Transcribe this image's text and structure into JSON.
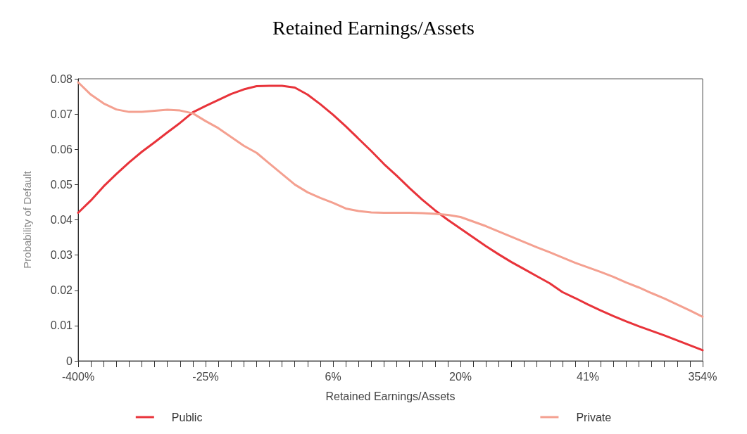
{
  "chart_data": {
    "type": "line",
    "title": "Retained Earnings/Assets",
    "xlabel": "Retained Earnings/Assets",
    "ylabel": "Probability of Default",
    "categories": [
      "-400%",
      null,
      null,
      null,
      null,
      null,
      null,
      null,
      null,
      null,
      "-25%",
      null,
      null,
      null,
      null,
      null,
      null,
      null,
      null,
      null,
      "6%",
      null,
      null,
      null,
      null,
      null,
      null,
      null,
      null,
      null,
      "20%",
      null,
      null,
      null,
      null,
      null,
      null,
      null,
      null,
      null,
      "41%",
      null,
      null,
      null,
      null,
      null,
      null,
      null,
      null,
      "354%"
    ],
    "series": [
      {
        "name": "Public",
        "color": "#e8333a",
        "values": [
          0.042,
          0.0455,
          0.0495,
          0.053,
          0.0563,
          0.0593,
          0.062,
          0.0648,
          0.0675,
          0.0705,
          0.0723,
          0.074,
          0.0757,
          0.077,
          0.0779,
          0.078,
          0.078,
          0.0775,
          0.0755,
          0.0728,
          0.0698,
          0.0665,
          0.063,
          0.0595,
          0.0558,
          0.0525,
          0.049,
          0.0457,
          0.0427,
          0.04,
          0.0375,
          0.035,
          0.0325,
          0.0302,
          0.028,
          0.026,
          0.024,
          0.022,
          0.0195,
          0.0178,
          0.016,
          0.0143,
          0.0127,
          0.0112,
          0.0098,
          0.0085,
          0.0072,
          0.0058,
          0.0044,
          0.003
        ]
      },
      {
        "name": "Private",
        "color": "#f4a090",
        "values": [
          0.079,
          0.0755,
          0.073,
          0.0713,
          0.0706,
          0.0706,
          0.0709,
          0.0712,
          0.071,
          0.0702,
          0.068,
          0.066,
          0.0635,
          0.061,
          0.059,
          0.056,
          0.053,
          0.05,
          0.0478,
          0.0462,
          0.0448,
          0.0432,
          0.0425,
          0.0421,
          0.042,
          0.042,
          0.042,
          0.0419,
          0.0417,
          0.0414,
          0.0408,
          0.0395,
          0.0382,
          0.0367,
          0.0352,
          0.0337,
          0.0322,
          0.0308,
          0.0293,
          0.0278,
          0.0265,
          0.0252,
          0.0238,
          0.0222,
          0.0208,
          0.0192,
          0.0177,
          0.016,
          0.0143,
          0.0125
        ]
      }
    ],
    "ylim": [
      0,
      0.08
    ],
    "yticks": [
      0,
      0.01,
      0.02,
      0.03,
      0.04,
      0.05,
      0.06,
      0.07,
      0.08
    ],
    "grid": false,
    "legend": "bottom",
    "marker": "none",
    "line_style": "solid"
  }
}
